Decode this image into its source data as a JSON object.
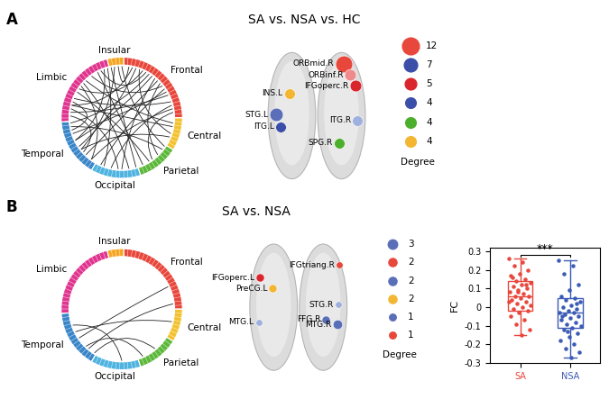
{
  "modules": [
    {
      "name": "Frontal",
      "regions": 22,
      "color": "#e8473c"
    },
    {
      "name": "Central",
      "regions": 8,
      "color": "#f2c230"
    },
    {
      "name": "Parietal",
      "regions": 10,
      "color": "#5cb83a"
    },
    {
      "name": "Occipital",
      "regions": 12,
      "color": "#4fb3e0"
    },
    {
      "name": "Temporal",
      "regions": 14,
      "color": "#3a86c8"
    },
    {
      "name": "Limbic",
      "regions": 20,
      "color": "#e0358f"
    },
    {
      "name": "Insular",
      "regions": 4,
      "color": "#f5a623"
    }
  ],
  "panels": [
    {
      "label": "A",
      "title": "SA vs. NSA vs. HC",
      "circle": {
        "edges": [
          [
            2,
            70
          ],
          [
            5,
            75
          ],
          [
            8,
            60
          ],
          [
            10,
            55
          ],
          [
            12,
            80
          ],
          [
            15,
            68
          ],
          [
            18,
            47
          ],
          [
            20,
            35
          ],
          [
            3,
            58
          ],
          [
            6,
            83
          ],
          [
            1,
            88
          ],
          [
            14,
            62
          ],
          [
            17,
            72
          ],
          [
            9,
            44
          ],
          [
            11,
            33
          ],
          [
            4,
            26
          ],
          [
            24,
            70
          ],
          [
            27,
            57
          ],
          [
            23,
            78
          ],
          [
            31,
            64
          ],
          [
            36,
            74
          ],
          [
            38,
            82
          ],
          [
            42,
            77
          ],
          [
            45,
            69
          ],
          [
            49,
            85
          ],
          [
            53,
            76
          ],
          [
            56,
            67
          ],
          [
            60,
            84
          ],
          [
            63,
            71
          ],
          [
            87,
            57
          ],
          [
            86,
            40
          ],
          [
            89,
            30
          ],
          [
            19,
            53
          ],
          [
            7,
            65
          ],
          [
            13,
            50
          ]
        ]
      },
      "brain": {
        "nodes": [
          {
            "label": "ORBmid.R",
            "degree": 12,
            "color": "#e8473c"
          },
          {
            "label": "ORBinf.R",
            "degree": 5,
            "color": "#f08a8a"
          },
          {
            "label": "IFGoperc.R",
            "degree": 5,
            "color": "#d9262c"
          },
          {
            "label": "INS.L",
            "degree": 4,
            "color": "#f2b632"
          },
          {
            "label": "STG.L",
            "degree": 7,
            "color": "#5b6fb8"
          },
          {
            "label": "ITG.L",
            "degree": 4,
            "color": "#3b4fa8"
          },
          {
            "label": "ITG.R",
            "degree": 4,
            "color": "#9fb0df"
          },
          {
            "label": "SPG.R",
            "degree": 4,
            "color": "#4caf2c"
          }
        ]
      },
      "degree_legend": {
        "title": "Degree",
        "entries": [
          {
            "degree": 12,
            "color": "#e8473c"
          },
          {
            "degree": 7,
            "color": "#3b4fa8"
          },
          {
            "degree": 5,
            "color": "#d9262c"
          },
          {
            "degree": 4,
            "color": "#3b4fa8"
          },
          {
            "degree": 4,
            "color": "#4caf2c"
          },
          {
            "degree": 4,
            "color": "#f2b632"
          }
        ]
      }
    },
    {
      "label": "B",
      "title": "SA vs. NSA",
      "circle": {
        "edges": [
          [
            54,
            20
          ],
          [
            58,
            15
          ],
          [
            60,
            25
          ],
          [
            52,
            34
          ],
          [
            55,
            38
          ],
          [
            62,
            44
          ]
        ]
      },
      "brain": {
        "nodes": [
          {
            "label": "IFGoperc.L",
            "degree": 2,
            "color": "#d9262c"
          },
          {
            "label": "PreCG.L",
            "degree": 2,
            "color": "#f2b632"
          },
          {
            "label": "MTG.L",
            "degree": 1,
            "color": "#9fb0df"
          },
          {
            "label": "IFGtriang.R",
            "degree": 1,
            "color": "#e8473c"
          },
          {
            "label": "STG.R",
            "degree": 1,
            "color": "#9fb0df"
          },
          {
            "label": "FFG.R",
            "degree": 2,
            "color": "#5b6fb8"
          },
          {
            "label": "MTG.R",
            "degree": 3,
            "color": "#5b6fb8"
          }
        ]
      },
      "degree_legend": {
        "title": "Degree",
        "entries": [
          {
            "degree": 3,
            "color": "#5b6fb8"
          },
          {
            "degree": 2,
            "color": "#e8473c"
          },
          {
            "degree": 2,
            "color": "#5b6fb8"
          },
          {
            "degree": 2,
            "color": "#f2b632"
          },
          {
            "degree": 1,
            "color": "#5b6fb8"
          },
          {
            "degree": 1,
            "color": "#e8473c"
          }
        ]
      }
    }
  ],
  "chart_data": {
    "type": "box",
    "ylabel": "FC",
    "categories": [
      "SA",
      "NSA"
    ],
    "colors": [
      "#e8473c",
      "#3b5bb5"
    ],
    "boxes": [
      {
        "q1": -0.02,
        "median": 0.06,
        "q3": 0.14,
        "whislo": -0.15,
        "whishi": 0.26
      },
      {
        "q1": -0.11,
        "median": -0.03,
        "q3": 0.05,
        "whislo": -0.27,
        "whishi": 0.25
      }
    ],
    "points": [
      [
        0.26,
        0.24,
        0.22,
        0.2,
        0.18,
        0.17,
        0.15,
        0.14,
        0.13,
        0.12,
        0.11,
        0.1,
        0.09,
        0.08,
        0.07,
        0.06,
        0.06,
        0.05,
        0.04,
        0.03,
        0.02,
        0.01,
        0.0,
        -0.01,
        -0.02,
        -0.03,
        -0.05,
        -0.07,
        -0.09,
        -0.12,
        -0.15,
        0.16,
        0.12,
        0.08,
        0.03
      ],
      [
        0.25,
        0.22,
        0.18,
        0.12,
        0.09,
        0.06,
        0.05,
        0.04,
        0.03,
        0.01,
        0.0,
        -0.01,
        -0.02,
        -0.03,
        -0.03,
        -0.04,
        -0.05,
        -0.06,
        -0.07,
        -0.08,
        -0.09,
        -0.1,
        -0.11,
        -0.12,
        -0.14,
        -0.16,
        -0.18,
        -0.2,
        -0.22,
        -0.24,
        -0.27,
        -0.05,
        0.02,
        -0.13
      ]
    ],
    "significance": "***",
    "ylim": [
      -0.3,
      0.32
    ],
    "yticks": [
      -0.3,
      -0.2,
      -0.1,
      0,
      0.1,
      0.2,
      0.3
    ]
  }
}
